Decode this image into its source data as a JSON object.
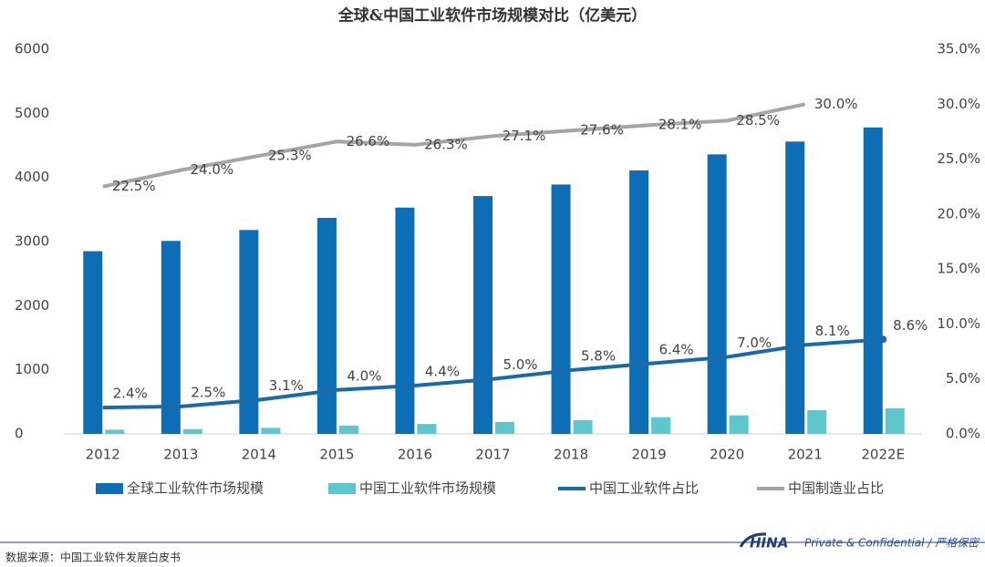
{
  "chart_data": {
    "type": "bar",
    "title": "全球&中国工业软件市场规模对比（亿美元）",
    "categories": [
      "2012",
      "2013",
      "2014",
      "2015",
      "2016",
      "2017",
      "2018",
      "2019",
      "2020",
      "2021",
      "2022E"
    ],
    "series": [
      {
        "name": "全球工业软件市场规模",
        "type": "bar",
        "color": "#0e6eb5",
        "values": [
          2850,
          3010,
          3180,
          3370,
          3530,
          3710,
          3890,
          4110,
          4360,
          4560,
          4780
        ]
      },
      {
        "name": "中国工业软件市场规模",
        "type": "bar",
        "color": "#5cc7cd",
        "values": [
          65,
          75,
          95,
          130,
          155,
          185,
          215,
          260,
          290,
          370,
          400
        ]
      },
      {
        "name": "中国工业软件占比",
        "type": "line",
        "axis": "y2",
        "color": "#1a6aaa",
        "values": [
          2.4,
          2.5,
          3.1,
          4.0,
          4.4,
          5.0,
          5.8,
          6.4,
          7.0,
          8.1,
          8.6
        ],
        "value_labels": [
          "2.4%",
          "2.5%",
          "3.1%",
          "4.0%",
          "4.4%",
          "5.0%",
          "5.8%",
          "6.4%",
          "7.0%",
          "8.1%",
          "8.6%"
        ]
      },
      {
        "name": "中国制造业占比",
        "type": "line",
        "axis": "y2",
        "color": "#a5a5a5",
        "values": [
          22.5,
          24.0,
          25.3,
          26.6,
          26.3,
          27.1,
          27.6,
          28.1,
          28.5,
          30.0,
          null
        ],
        "value_labels": [
          "22.5%",
          "24.0%",
          "25.3%",
          "26.6%",
          "26.3%",
          "27.1%",
          "27.6%",
          "28.1%",
          "28.5%",
          "30.0%",
          null
        ]
      }
    ],
    "ylim": [
      0,
      6000
    ],
    "yticks": [
      0,
      1000,
      2000,
      3000,
      4000,
      5000,
      6000
    ],
    "y2lim": [
      0,
      35
    ],
    "y2ticks": [
      {
        "value": 0,
        "label": "0.0%"
      },
      {
        "value": 5,
        "label": "5.0%"
      },
      {
        "value": 10,
        "label": "10.0%"
      },
      {
        "value": 15,
        "label": "15.0%"
      },
      {
        "value": 20,
        "label": "20.0%"
      },
      {
        "value": 25,
        "label": "25.0%"
      },
      {
        "value": 30,
        "label": "30.0%"
      },
      {
        "value": 35,
        "label": "35.0%"
      }
    ],
    "legend": "bottom"
  },
  "footer": {
    "source": "数据来源：中国工业软件发展白皮书",
    "logo": "HINA",
    "confidential": "Private & Confidential / 严格保密"
  }
}
